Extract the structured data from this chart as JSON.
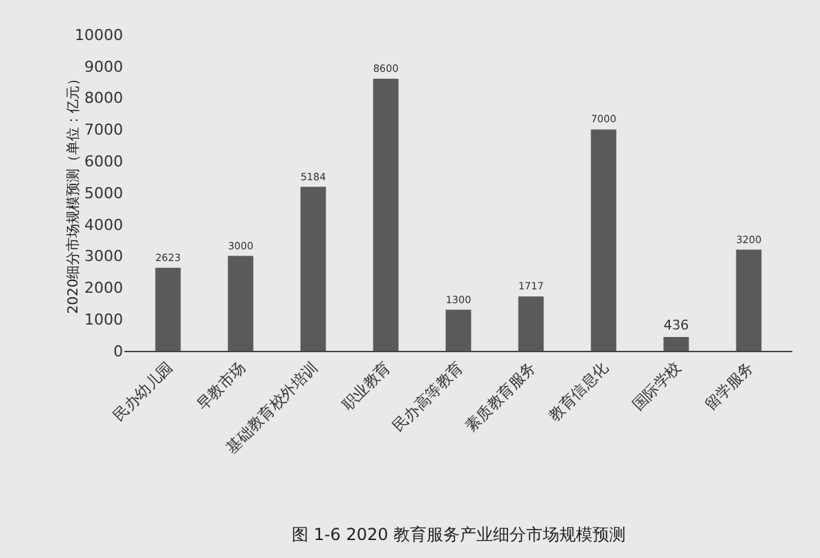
{
  "chart_data": {
    "type": "bar",
    "ylabel": "2020细分市场规模预测（单位：亿元）",
    "categories": [
      "民办幼儿园",
      "早教市场",
      "基础教育校外培训",
      "职业教育",
      "民办高等教育",
      "素质教育服务",
      "教育信息化",
      "国际学校",
      "留学服务"
    ],
    "values": [
      2623,
      3000,
      5184,
      8600,
      1300,
      1717,
      7000,
      436,
      3200
    ],
    "color": "#5a5a5a",
    "ylim": [
      0,
      10000
    ],
    "yticks": [
      0,
      1000,
      2000,
      3000,
      4000,
      5000,
      6000,
      7000,
      8000,
      9000,
      10000
    ],
    "grid": false,
    "data_labels": true,
    "annotations": [
      "图 1-6 2020 教育服务产业细分市场规模预测"
    ]
  }
}
